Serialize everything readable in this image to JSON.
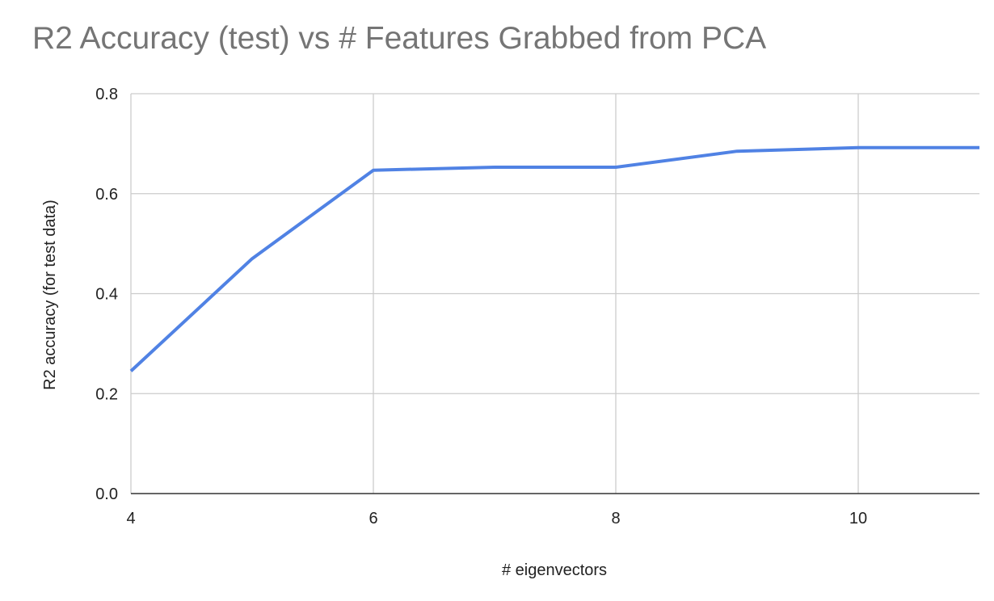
{
  "chart_data": {
    "type": "line",
    "title": "R2 Accuracy (test) vs # Features Grabbed from PCA",
    "xlabel": "# eigenvectors",
    "ylabel": "R2 accuracy (for test data)",
    "x": [
      4,
      5,
      6,
      7,
      8,
      9,
      10,
      11
    ],
    "series": [
      {
        "values": [
          0.245,
          0.47,
          0.647,
          0.653,
          0.653,
          0.685,
          0.692,
          0.692
        ],
        "color": "#5082e4"
      }
    ],
    "xlim": [
      4,
      11
    ],
    "ylim": [
      0,
      0.8
    ],
    "x_ticks": [
      4,
      6,
      8,
      10
    ],
    "x_tick_labels": [
      "4",
      "6",
      "8",
      "10"
    ],
    "y_ticks": [
      0,
      0.2,
      0.4,
      0.6,
      0.8
    ],
    "y_tick_labels": [
      "0.0",
      "0.2",
      "0.4",
      "0.6",
      "0.8"
    ],
    "grid": true,
    "legend": "none"
  }
}
